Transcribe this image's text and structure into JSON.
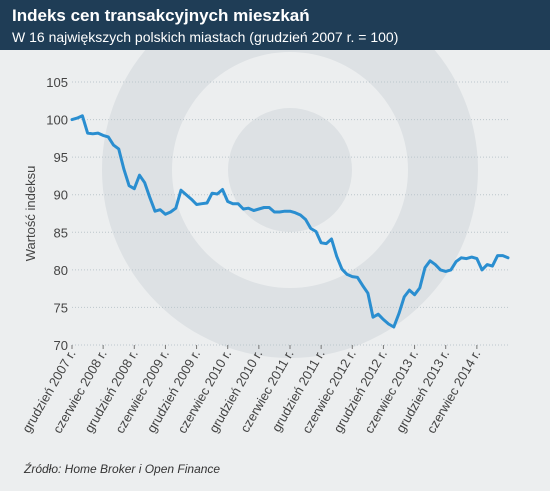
{
  "header": {
    "title": "Indeks cen transakcyjnych mieszkań",
    "subtitle": "W 16 największych polskich miastach (grudzień 2007 r. = 100)"
  },
  "source": "Źródło: Home Broker i Open Finance",
  "colors": {
    "line": "#2a8ed0",
    "header_bg": "#1f3d56",
    "grid": "#bcc6cc",
    "background": "#eceeef",
    "axis_text": "#444444"
  },
  "chart_data": {
    "type": "line",
    "title": "Indeks cen transakcyjnych mieszkań",
    "subtitle": "W 16 największych polskich miastach (grudzień 2007 r. = 100)",
    "xlabel": "",
    "ylabel": "Wartość indeksu",
    "ylim": [
      70,
      105
    ],
    "yticks": [
      70,
      75,
      80,
      85,
      90,
      95,
      100,
      105
    ],
    "grid": true,
    "legend": "none",
    "xtick_labels": [
      "grudzień 2007 r.",
      "czerwiec 2008 r.",
      "grudzień 2008 r.",
      "czerwiec 2009 r.",
      "grudzień 2009 r.",
      "czerwiec 2010 r.",
      "grudzień 2010 r.",
      "czerwiec 2011 r.",
      "grudzień 2011 r.",
      "czerwiec 2012 r.",
      "grudzień 2012 r.",
      "czerwiec 2013 r.",
      "grudzień 2013 r.",
      "czerwiec 2014 r."
    ],
    "xtick_months": [
      0,
      6,
      12,
      18,
      24,
      30,
      36,
      42,
      48,
      54,
      60,
      66,
      72,
      78
    ],
    "x_months": [
      0,
      1,
      2,
      3,
      4,
      5,
      6,
      7,
      8,
      9,
      10,
      11,
      12,
      13,
      14,
      15,
      16,
      17,
      18,
      19,
      20,
      21,
      22,
      23,
      24,
      25,
      26,
      27,
      28,
      29,
      30,
      31,
      32,
      33,
      34,
      35,
      36,
      37,
      38,
      39,
      40,
      41,
      42,
      43,
      44,
      45,
      46,
      47,
      48,
      49,
      50,
      51,
      52,
      53,
      54,
      55,
      56,
      57,
      58,
      59,
      60,
      61,
      62,
      63,
      64,
      65,
      66,
      67,
      68,
      69,
      70,
      71,
      72,
      73,
      74,
      75,
      76,
      77,
      78,
      79,
      80,
      81,
      82,
      83,
      84
    ],
    "series": [
      {
        "values": [
          100.0,
          100.2,
          100.5,
          98.2,
          98.1,
          98.2,
          97.9,
          97.7,
          96.6,
          96.1,
          93.4,
          91.2,
          90.8,
          92.6,
          91.6,
          89.6,
          87.8,
          88.0,
          87.4,
          87.7,
          88.2,
          90.6,
          90.0,
          89.4,
          88.7,
          88.8,
          88.9,
          90.2,
          90.1,
          90.7,
          89.1,
          88.8,
          88.8,
          88.1,
          88.2,
          87.9,
          88.1,
          88.3,
          88.3,
          87.7,
          87.7,
          87.8,
          87.8,
          87.6,
          87.3,
          86.7,
          85.5,
          85.1,
          83.6,
          83.5,
          84.1,
          81.8,
          80.1,
          79.4,
          79.1,
          79.0,
          77.9,
          76.9,
          73.7,
          74.1,
          73.4,
          72.8,
          72.4,
          74.2,
          76.4,
          77.3,
          76.7,
          77.6,
          80.3,
          81.2,
          80.7,
          80.0,
          79.8,
          80.0,
          81.1,
          81.6,
          81.5,
          81.7,
          81.5,
          80.0,
          80.7,
          80.5,
          81.9,
          81.9,
          81.6
        ]
      }
    ]
  }
}
